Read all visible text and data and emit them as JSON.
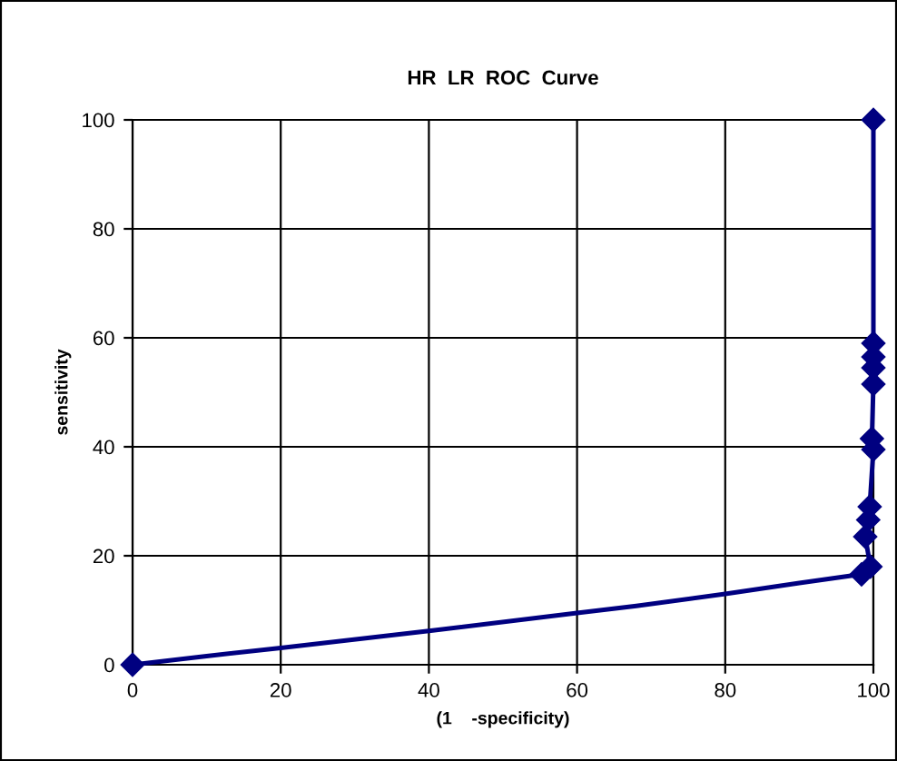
{
  "chart_data": {
    "type": "line",
    "title": "HR  LR  ROC  Curve",
    "xlabel": "(1    -specificity)",
    "ylabel": "sensitivity",
    "series": [
      {
        "color": "#000080",
        "marker": "none",
        "x": [
          0,
          10,
          20,
          40,
          60,
          68,
          80,
          90,
          98.4
        ],
        "values": [
          0,
          1.6,
          3.1,
          6.2,
          9.5,
          10.8,
          13,
          15,
          16.6
        ]
      },
      {
        "color": "#000080",
        "marker": "diamond",
        "x": [
          98.4,
          99.6,
          98.9,
          99.3,
          99.5,
          100,
          99.8,
          100,
          100,
          100,
          100,
          100
        ],
        "values": [
          16.6,
          18,
          23.5,
          26.6,
          29,
          39.5,
          41.5,
          51.5,
          54.5,
          56.5,
          59,
          100
        ]
      },
      {
        "color": "#000080",
        "marker": "diamond",
        "x": [
          0
        ],
        "values": [
          0
        ]
      }
    ],
    "xlim": [
      0,
      100
    ],
    "ylim": [
      0,
      100
    ],
    "xticks": [
      0,
      20,
      40,
      60,
      80,
      100
    ],
    "yticks": [
      0,
      20,
      40,
      60,
      80,
      100
    ],
    "grid": true,
    "line_style": "solid"
  }
}
